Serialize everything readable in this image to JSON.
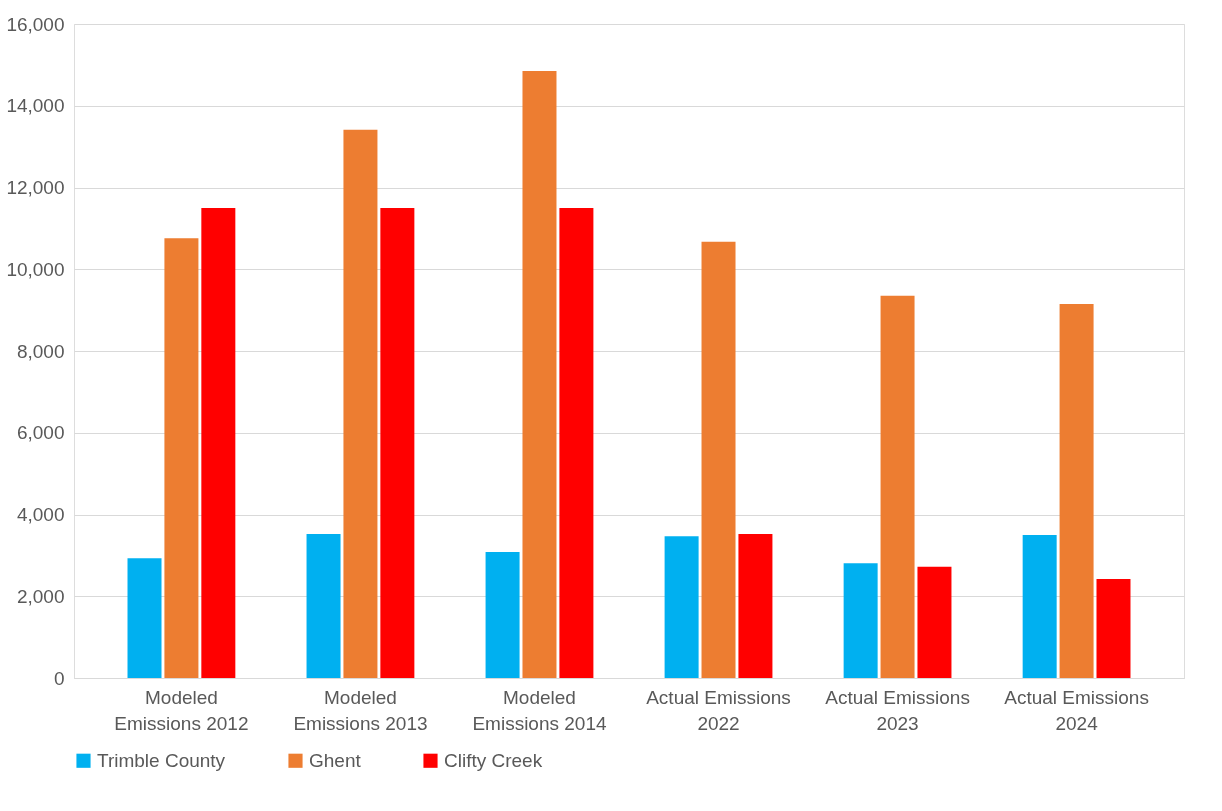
{
  "chart_data": {
    "type": "bar",
    "categories": [
      "Modeled Emissions 2012",
      "Modeled Emissions 2013",
      "Modeled Emissions 2014",
      "Actual Emissions 2022",
      "Actual Emissions 2023",
      "Actual Emissions 2024"
    ],
    "series": [
      {
        "name": "Trimble County",
        "color": "#00b0f0",
        "values": [
          2930,
          3520,
          3080,
          3470,
          2810,
          3500
        ]
      },
      {
        "name": "Ghent",
        "color": "#ed7d31",
        "values": [
          10760,
          13410,
          14850,
          10670,
          9350,
          9150
        ]
      },
      {
        "name": "Clifty Creek",
        "color": "#ff0000",
        "values": [
          11500,
          11500,
          11500,
          3520,
          2720,
          2420
        ]
      }
    ],
    "ylim": [
      0,
      16000
    ],
    "yticks": [
      {
        "value": 0,
        "label": "0"
      },
      {
        "value": 2000,
        "label": "2,000"
      },
      {
        "value": 4000,
        "label": "4,000"
      },
      {
        "value": 6000,
        "label": "6,000"
      },
      {
        "value": 8000,
        "label": "8,000"
      },
      {
        "value": 10000,
        "label": "10,000"
      },
      {
        "value": 12000,
        "label": "12,000"
      },
      {
        "value": 14000,
        "label": "14,000"
      },
      {
        "value": 16000,
        "label": "16,000"
      }
    ],
    "grid": "y",
    "legend": "bottom"
  }
}
